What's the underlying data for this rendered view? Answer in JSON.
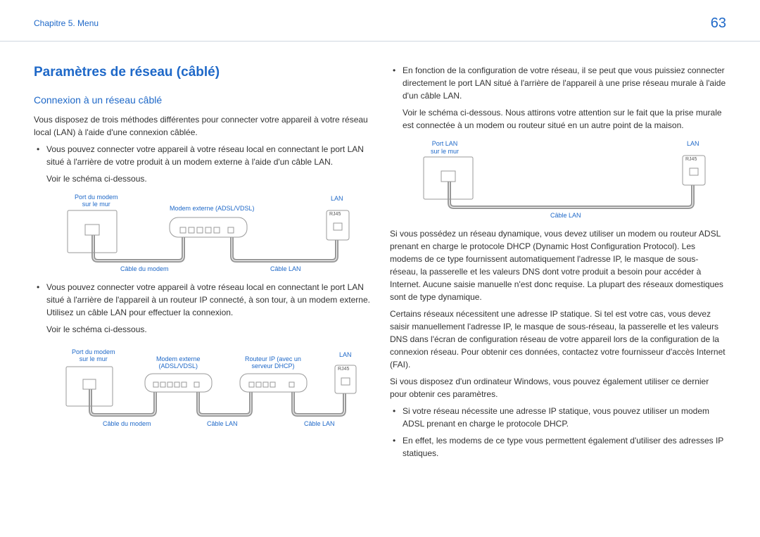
{
  "header": {
    "chapter": "Chapitre 5. Menu",
    "page": "63"
  },
  "title": "Paramètres de réseau (câblé)",
  "subtitle": "Connexion à un réseau câblé",
  "intro": "Vous disposez de trois méthodes différentes pour connecter votre appareil à votre réseau local (LAN) à l'aide d'une connexion câblée.",
  "bullet1": "Vous pouvez connecter votre appareil à votre réseau local en connectant le port LAN situé à l'arrière de votre produit à un modem externe à l'aide d'un câble LAN.",
  "voir": "Voir le schéma ci-dessous.",
  "bullet2": "Vous pouvez connecter votre appareil à votre réseau local en connectant le port LAN situé à l'arrière de l'appareil à un routeur IP connecté, à son tour, à un modem externe. Utilisez un câble LAN pour effectuer la connexion.",
  "bullet3": "En fonction de la configuration de votre réseau, il se peut que vous puissiez connecter directement le port LAN situé à l'arrière de l'appareil à une prise réseau murale à l'aide d'un câble LAN.",
  "bullet3b": "Voir le schéma ci-dessous. Nous attirons votre attention sur le fait que la prise murale est connectée à un modem ou routeur situé en un autre point de la maison.",
  "para1": "Si vous possédez un réseau dynamique, vous devez utiliser un modem ou routeur ADSL prenant en charge le protocole DHCP (Dynamic Host Configuration Protocol). Les modems de ce type fournissent automatiquement l'adresse IP, le masque de sous-réseau, la passerelle et les valeurs DNS dont votre produit a besoin pour accéder à Internet. Aucune saisie manuelle n'est donc requise. La plupart des réseaux domestiques sont de type dynamique.",
  "para2": "Certains réseaux nécessitent une adresse IP statique. Si tel est votre cas, vous devez saisir manuellement l'adresse IP, le masque de sous-réseau, la passerelle et les valeurs DNS dans l'écran de configuration réseau de votre appareil lors de la configuration de la connexion réseau. Pour obtenir ces données, contactez votre fournisseur d'accès Internet (FAI).",
  "para3": "Si vous disposez d'un ordinateur Windows, vous pouvez également utiliser ce dernier pour obtenir ces paramètres.",
  "bullet4": "Si votre réseau nécessite une adresse IP statique, vous pouvez utiliser un modem ADSL prenant en charge le protocole DHCP.",
  "bullet5": "En effet, les modems de ce type vous permettent également d'utiliser des adresses IP statiques.",
  "labels": {
    "portModem": "Port du modem\nsur le mur",
    "portLan": "Port LAN\nsur le mur",
    "modemExt": "Modem externe (ADSL/VDSL)",
    "modemExt2": "Modem externe\n(ADSL/VDSL)",
    "routeur": "Routeur IP (avec un\nserveur DHCP)",
    "lan": "LAN",
    "rj45": "RJ45",
    "cableModem": "Câble du modem",
    "cableLan": "Câble LAN"
  },
  "colors": {
    "blue": "#1e68c8",
    "stroke": "#888",
    "fill": "#fff"
  }
}
